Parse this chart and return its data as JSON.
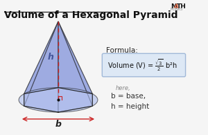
{
  "title": "Volume of a Hexagonal Pyramid",
  "bg_color": "#f5f5f5",
  "formula_label": "Formula:",
  "formula_box_color": "#dde8f5",
  "formula_box_edge": "#a0b8d8",
  "here_text": "here,",
  "b_text": "b = base,",
  "h_text": "h = height",
  "pyramid_face_color": "#8899dd",
  "pyramid_face_alpha": 0.55,
  "pyramid_edge_color": "#222222",
  "pyramid_base_color": "#aabbee",
  "pyramid_base_alpha": 0.6,
  "dashed_color": "#cc2222",
  "arrow_color": "#cc2222",
  "dot_color": "#111111",
  "h_label_color": "#445599",
  "b_label_color": "#222222",
  "math_monks_color": "#e07050",
  "title_color": "#111111",
  "title_fontsize": 10,
  "formula_fontsize": 8
}
